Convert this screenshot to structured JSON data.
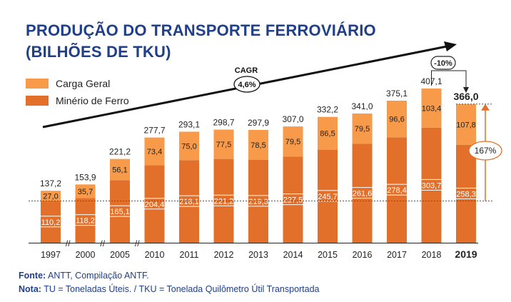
{
  "title_line1": "PRODUÇÃO DO TRANSPORTE FERROVIÁRIO",
  "title_line2": "(BILHÕES DE TKU)",
  "legend": [
    {
      "label": "Carga Geral",
      "color": "#f79a4a"
    },
    {
      "label": "Minério de Ferro",
      "color": "#e2702a"
    }
  ],
  "cagr": {
    "label": "CAGR",
    "value": "4,6%"
  },
  "change_badge": "-10%",
  "growth_badge": "167%",
  "footer": {
    "fonte_label": "Fonte:",
    "fonte_text": "ANTT, Compilação ANTF.",
    "nota_label": "Nota:",
    "nota_text": "TU = Toneladas Úteis. / TKU = Tonelada Quilômetro Útil Transportada"
  },
  "chart_data": {
    "type": "bar",
    "stacked": true,
    "categories": [
      "1997",
      "2000",
      "2005",
      "2010",
      "2011",
      "2012",
      "2013",
      "2014",
      "2015",
      "2016",
      "2017",
      "2018",
      "2019"
    ],
    "series": [
      {
        "name": "Minério de Ferro",
        "values": [
          110.2,
          118.2,
          165.1,
          204.4,
          218.1,
          221.2,
          219.3,
          227.5,
          245.7,
          261.6,
          278.4,
          303.7,
          258.3
        ],
        "labels": [
          "110,2",
          "118,2",
          "165,1",
          "204,4",
          "218,1",
          "221,2",
          "219,3",
          "227,5",
          "245,7",
          "261,6",
          "278,4",
          "303,7",
          "258,3"
        ]
      },
      {
        "name": "Carga Geral",
        "values": [
          27.0,
          35.7,
          56.1,
          73.4,
          75.0,
          77.5,
          78.5,
          79.5,
          86.5,
          79.5,
          96.6,
          103.4,
          107.8
        ],
        "labels": [
          "27,0",
          "35,7",
          "56,1",
          "73,4",
          "75,0",
          "77,5",
          "78,5",
          "79,5",
          "86,5",
          "79,5",
          "96,6",
          "103,4",
          "107,8"
        ]
      }
    ],
    "totals": [
      "137,2",
      "153,9",
      "221,2",
      "277,7",
      "293,1",
      "298,7",
      "297,9",
      "307,0",
      "332,2",
      "341,0",
      "375,1",
      "407,1",
      "366,0"
    ],
    "highlight_category": "2019",
    "axis_breaks_after": [
      "1997",
      "2000",
      "2005"
    ],
    "ylim": [
      0,
      407.1
    ]
  }
}
